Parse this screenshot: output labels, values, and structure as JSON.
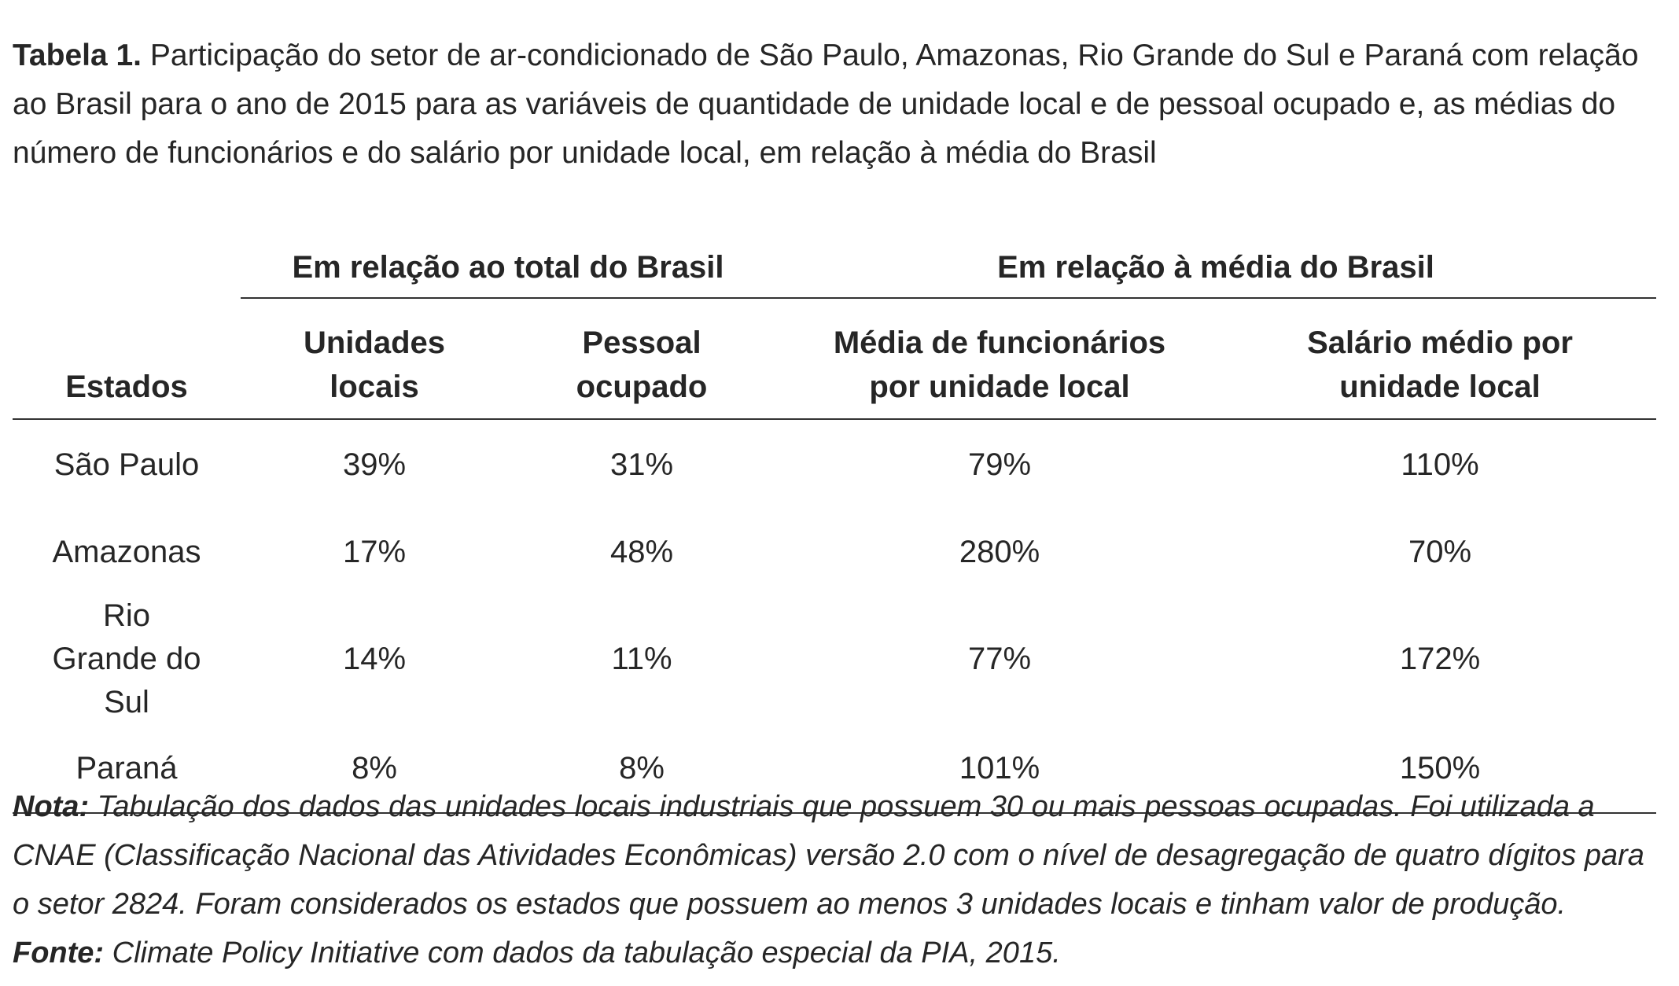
{
  "caption": {
    "label": "Tabela 1.",
    "text": " Participação do setor de ar-condicionado de São Paulo, Amazonas, Rio Grande do Sul e Paraná com relação ao Brasil para o ano de 2015 para as variáveis de quantidade de unidade local e de pessoal ocupado e, as médias do número de funcionários e do salário por unidade local, em relação à média do Brasil"
  },
  "table": {
    "group_headers": [
      "Em relação ao total do Brasil",
      "Em relação à média do Brasil"
    ],
    "columns": [
      "Estados",
      "Unidades locais",
      "Pessoal ocupado",
      "Média de funcionários por unidade local",
      "Salário médio por unidade local"
    ],
    "rows": [
      [
        "São Paulo",
        "39%",
        "31%",
        "79%",
        "110%"
      ],
      [
        "Amazonas",
        "17%",
        "48%",
        "280%",
        "70%"
      ],
      [
        "Rio Grande do Sul",
        "14%",
        "11%",
        "77%",
        "172%"
      ],
      [
        "Paraná",
        "8%",
        "8%",
        "101%",
        "150%"
      ]
    ]
  },
  "notes": {
    "nota_label": "Nota:",
    "nota_text": " Tabulação dos dados das unidades locais industriais que possuem 30 ou mais pessoas ocupadas. Foi utilizada a CNAE (Classificação Nacional das Atividades Econômicas) versão 2.0 com o nível de desagregação de quatro dígitos para o setor 2824. Foram considerados os estados que possuem ao menos 3 unidades locais e tinham valor de produção.",
    "fonte_label": "Fonte:",
    "fonte_text": " Climate Policy Initiative com dados da tabulação especial da PIA, 2015."
  }
}
